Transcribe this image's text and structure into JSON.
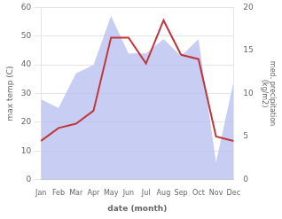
{
  "chart_data": {
    "type": "line",
    "xlabel": "date (month)",
    "ylabel": "max temp (C)",
    "y2label": "med. precipitation\n(kg/m2)",
    "categories": [
      "Jan",
      "Feb",
      "Mar",
      "Apr",
      "May",
      "Jun",
      "Jul",
      "Aug",
      "Sep",
      "Oct",
      "Nov",
      "Dec"
    ],
    "series": [
      {
        "type": "area",
        "color": "#b0b8ee",
        "values": [
          28,
          25,
          37,
          40,
          57,
          44,
          44,
          49,
          43,
          49,
          6,
          34
        ]
      },
      {
        "type": "line",
        "color": "#c0363a",
        "axis": "y2",
        "values": [
          4.5,
          6,
          6.5,
          8,
          16.5,
          16.5,
          13.5,
          18.5,
          14.5,
          14,
          5,
          4.5
        ]
      }
    ],
    "ylim": [
      0,
      60
    ],
    "yticks": [
      0,
      10,
      20,
      30,
      40,
      50,
      60
    ],
    "y2lim": [
      0,
      20
    ],
    "y2ticks": [
      0,
      5,
      10,
      15,
      20
    ],
    "grid": true
  }
}
